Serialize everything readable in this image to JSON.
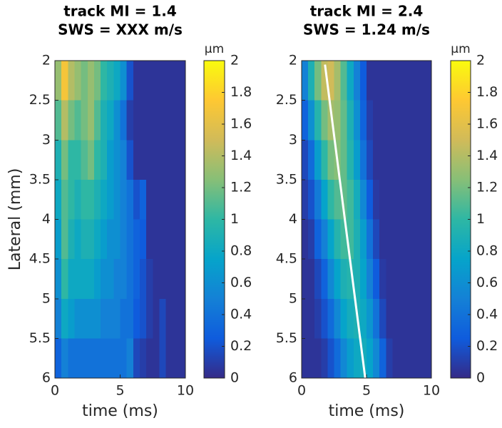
{
  "chart_data": [
    {
      "type": "heatmap",
      "title": [
        "track MI = 1.4",
        "SWS = XXX m/s"
      ],
      "xlabel": "time (ms)",
      "ylabel": "Lateral (mm)",
      "x": [
        0,
        0.5,
        1,
        1.5,
        2,
        2.5,
        3,
        3.5,
        4,
        4.5,
        5,
        5.5,
        6,
        6.5,
        7,
        7.5,
        8,
        8.5,
        9,
        9.5,
        10
      ],
      "y": [
        2,
        2.5,
        3,
        3.5,
        4,
        4.5,
        5,
        5.5,
        6
      ],
      "z": [
        [
          1.3,
          1.7,
          1.4,
          1.3,
          1.2,
          1.3,
          1.2,
          1.0,
          0.9,
          0.8,
          0.6,
          0.2,
          0.05,
          0.05,
          0.05,
          0.05,
          0.05,
          0.05,
          0.05,
          0.05
        ],
        [
          1.1,
          1.4,
          1.2,
          1.1,
          1.2,
          1.3,
          1.1,
          0.9,
          0.8,
          0.6,
          0.4,
          0.1,
          0.05,
          0.05,
          0.05,
          0.05,
          0.05,
          0.05,
          0.05,
          0.05
        ],
        [
          0.9,
          1.2,
          1.0,
          1.0,
          1.1,
          1.2,
          1.0,
          0.9,
          0.7,
          0.6,
          0.5,
          0.2,
          0.05,
          0.05,
          0.05,
          0.05,
          0.05,
          0.05,
          0.05,
          0.05
        ],
        [
          0.8,
          1.1,
          1.0,
          0.9,
          1.0,
          1.0,
          0.9,
          0.8,
          0.7,
          0.6,
          0.5,
          0.4,
          0.2,
          0.3,
          0.05,
          0.05,
          0.05,
          0.05,
          0.05,
          0.05
        ],
        [
          0.7,
          1.1,
          0.9,
          0.8,
          0.9,
          0.9,
          0.8,
          0.7,
          0.6,
          0.6,
          0.5,
          0.4,
          0.3,
          0.25,
          0.05,
          0.05,
          0.05,
          0.05,
          0.05,
          0.05
        ],
        [
          0.6,
          1.0,
          0.8,
          0.8,
          0.8,
          0.8,
          0.7,
          0.6,
          0.6,
          0.5,
          0.5,
          0.4,
          0.3,
          0.2,
          0.1,
          0.05,
          0.05,
          0.05,
          0.05,
          0.05
        ],
        [
          0.5,
          0.8,
          0.7,
          0.6,
          0.6,
          0.6,
          0.6,
          0.5,
          0.5,
          0.5,
          0.4,
          0.4,
          0.25,
          0.2,
          0.1,
          0.05,
          0.15,
          0.05,
          0.05,
          0.05
        ],
        [
          0.3,
          0.5,
          0.4,
          0.4,
          0.4,
          0.4,
          0.4,
          0.4,
          0.4,
          0.4,
          0.4,
          0.5,
          0.15,
          0.1,
          0.05,
          0.05,
          0.15,
          0.05,
          0.05,
          0.05
        ]
      ],
      "xlim": [
        0,
        10
      ],
      "xticks": [
        0,
        5,
        10
      ],
      "ylim": [
        2,
        6
      ],
      "y_reversed": true,
      "yticks": [
        2,
        2.5,
        3,
        3.5,
        4,
        4.5,
        5,
        5.5,
        6
      ],
      "colormap": [
        "#352a87",
        "#0f5cdd",
        "#1481d6",
        "#06a4ca",
        "#2eb7a4",
        "#87bf77",
        "#d1bb59",
        "#fec832",
        "#f9fb0e"
      ],
      "colorbar": {
        "label": "μm",
        "clim": [
          0,
          2
        ],
        "ticks": [
          0,
          0.2,
          0.4,
          0.6,
          0.8,
          1,
          1.2,
          1.4,
          1.6,
          1.8,
          2
        ]
      }
    },
    {
      "type": "heatmap",
      "title": [
        "track MI = 2.4",
        "SWS = 1.24 m/s"
      ],
      "xlabel": "time (ms)",
      "x": [
        0,
        0.5,
        1,
        1.5,
        2,
        2.5,
        3,
        3.5,
        4,
        4.5,
        5,
        5.5,
        6,
        6.5,
        7,
        7.5,
        8,
        8.5,
        9,
        9.5,
        10
      ],
      "y": [
        2,
        2.5,
        3,
        3.5,
        4,
        4.5,
        5,
        5.5,
        6
      ],
      "z": [
        [
          0.5,
          0.9,
          1.2,
          1.45,
          1.5,
          1.35,
          1.1,
          0.8,
          0.5,
          0.25,
          0.05,
          0.05,
          0.05,
          0.05,
          0.05,
          0.05,
          0.05,
          0.05,
          0.05,
          0.05
        ],
        [
          0.3,
          0.6,
          0.95,
          1.2,
          1.35,
          1.3,
          1.15,
          0.9,
          0.6,
          0.3,
          0.1,
          0.05,
          0.05,
          0.05,
          0.05,
          0.05,
          0.05,
          0.05,
          0.05,
          0.05
        ],
        [
          0.15,
          0.35,
          0.7,
          1.0,
          1.2,
          1.25,
          1.15,
          0.95,
          0.7,
          0.4,
          0.15,
          0.05,
          0.05,
          0.05,
          0.05,
          0.05,
          0.05,
          0.05,
          0.05,
          0.05
        ],
        [
          0.1,
          0.2,
          0.45,
          0.75,
          1.0,
          1.1,
          1.15,
          1.05,
          0.85,
          0.55,
          0.25,
          0.08,
          0.05,
          0.05,
          0.05,
          0.05,
          0.05,
          0.05,
          0.05,
          0.05
        ],
        [
          0.05,
          0.1,
          0.3,
          0.5,
          0.75,
          0.95,
          1.05,
          1.05,
          0.9,
          0.7,
          0.4,
          0.15,
          0.05,
          0.05,
          0.05,
          0.05,
          0.05,
          0.05,
          0.05,
          0.05
        ],
        [
          0.05,
          0.05,
          0.15,
          0.3,
          0.55,
          0.75,
          0.9,
          0.95,
          0.9,
          0.75,
          0.5,
          0.25,
          0.08,
          0.05,
          0.05,
          0.05,
          0.05,
          0.05,
          0.05,
          0.05
        ],
        [
          0.05,
          0.05,
          0.1,
          0.2,
          0.35,
          0.55,
          0.75,
          0.85,
          0.9,
          0.8,
          0.65,
          0.4,
          0.15,
          0.05,
          0.05,
          0.05,
          0.05,
          0.05,
          0.05,
          0.05
        ],
        [
          0.05,
          0.05,
          0.05,
          0.1,
          0.2,
          0.35,
          0.55,
          0.7,
          0.8,
          0.85,
          0.75,
          0.55,
          0.3,
          0.1,
          0.05,
          0.05,
          0.05,
          0.05,
          0.05,
          0.05
        ]
      ],
      "xlim": [
        0,
        10
      ],
      "xticks": [
        0,
        5,
        10
      ],
      "ylim": [
        2,
        6
      ],
      "y_reversed": true,
      "yticks": [
        2,
        2.5,
        3,
        3.5,
        4,
        4.5,
        5,
        5.5,
        6
      ],
      "fit_line": {
        "color": "#ffffff",
        "x": [
          1.8,
          4.9
        ],
        "y": [
          2.05,
          6
        ]
      },
      "colormap": [
        "#352a87",
        "#0f5cdd",
        "#1481d6",
        "#06a4ca",
        "#2eb7a4",
        "#87bf77",
        "#d1bb59",
        "#fec832",
        "#f9fb0e"
      ],
      "colorbar": {
        "label": "μm",
        "clim": [
          0,
          2
        ],
        "ticks": [
          0,
          0.2,
          0.4,
          0.6,
          0.8,
          1,
          1.2,
          1.4,
          1.6,
          1.8,
          2
        ]
      }
    }
  ]
}
